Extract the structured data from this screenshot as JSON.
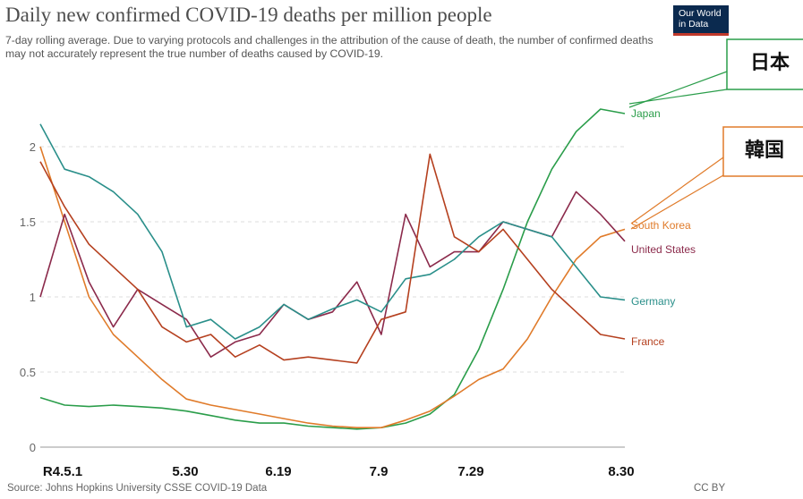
{
  "chart_data": {
    "type": "line",
    "title": "Daily new confirmed COVID-19 deaths per million people",
    "subtitle": "7-day rolling average. Due to varying protocols and challenges in the attribution of the cause of death, the number of confirmed deaths may not accurately represent the true number of deaths caused by COVID-19.",
    "source": "Source: Johns Hopkins University CSSE COVID-19 Data",
    "license": "CC BY",
    "logo": [
      "Our World",
      "in Data"
    ],
    "xlabel": "",
    "ylabel": "",
    "x_ticks": [
      "R4.5.1",
      "5.30",
      "6.19",
      "7.9",
      "7.29",
      "8.30"
    ],
    "y_ticks": [
      0,
      0.5,
      1,
      1.5,
      2
    ],
    "ylim": [
      0,
      2.5
    ],
    "grid": "horizontal dashed",
    "x": [
      "5/1",
      "5/5",
      "5/10",
      "5/15",
      "5/20",
      "5/25",
      "5/30",
      "6/4",
      "6/9",
      "6/14",
      "6/19",
      "6/24",
      "6/29",
      "7/4",
      "7/9",
      "7/14",
      "7/19",
      "7/24",
      "7/29",
      "8/3",
      "8/8",
      "8/13",
      "8/18",
      "8/23",
      "8/30"
    ],
    "series": [
      {
        "name": "Japan",
        "color": "#2a9d4a",
        "values": [
          0.33,
          0.28,
          0.27,
          0.28,
          0.27,
          0.26,
          0.24,
          0.21,
          0.18,
          0.16,
          0.16,
          0.14,
          0.13,
          0.12,
          0.13,
          0.16,
          0.22,
          0.35,
          0.65,
          1.05,
          1.5,
          1.85,
          2.1,
          2.25,
          2.22
        ]
      },
      {
        "name": "South Korea",
        "color": "#e07b2a",
        "values": [
          2.0,
          1.5,
          1.0,
          0.75,
          0.6,
          0.45,
          0.32,
          0.28,
          0.25,
          0.22,
          0.19,
          0.16,
          0.14,
          0.13,
          0.13,
          0.18,
          0.24,
          0.34,
          0.45,
          0.52,
          0.72,
          1.0,
          1.25,
          1.4,
          1.45
        ]
      },
      {
        "name": "United States",
        "color": "#8b2a4b",
        "values": [
          1.0,
          1.55,
          1.1,
          0.8,
          1.05,
          0.95,
          0.85,
          0.6,
          0.7,
          0.75,
          0.95,
          0.85,
          0.9,
          1.1,
          0.75,
          1.55,
          1.2,
          1.3,
          1.3,
          1.5,
          1.45,
          1.4,
          1.7,
          1.55,
          1.37
        ]
      },
      {
        "name": "Germany",
        "color": "#2a8f8a",
        "values": [
          2.15,
          1.85,
          1.8,
          1.7,
          1.55,
          1.3,
          0.8,
          0.85,
          0.72,
          0.8,
          0.95,
          0.85,
          0.92,
          0.98,
          0.9,
          1.12,
          1.15,
          1.25,
          1.4,
          1.5,
          1.45,
          1.4,
          1.2,
          1.0,
          0.98
        ]
      },
      {
        "name": "France",
        "color": "#b5401f",
        "values": [
          1.9,
          1.6,
          1.35,
          1.2,
          1.05,
          0.8,
          0.7,
          0.75,
          0.6,
          0.68,
          0.58,
          0.6,
          0.58,
          0.56,
          0.85,
          0.9,
          1.95,
          1.4,
          1.3,
          1.45,
          1.25,
          1.05,
          0.9,
          0.75,
          0.72
        ]
      }
    ]
  },
  "callouts": {
    "japan": "日本",
    "korea": "韓国"
  }
}
